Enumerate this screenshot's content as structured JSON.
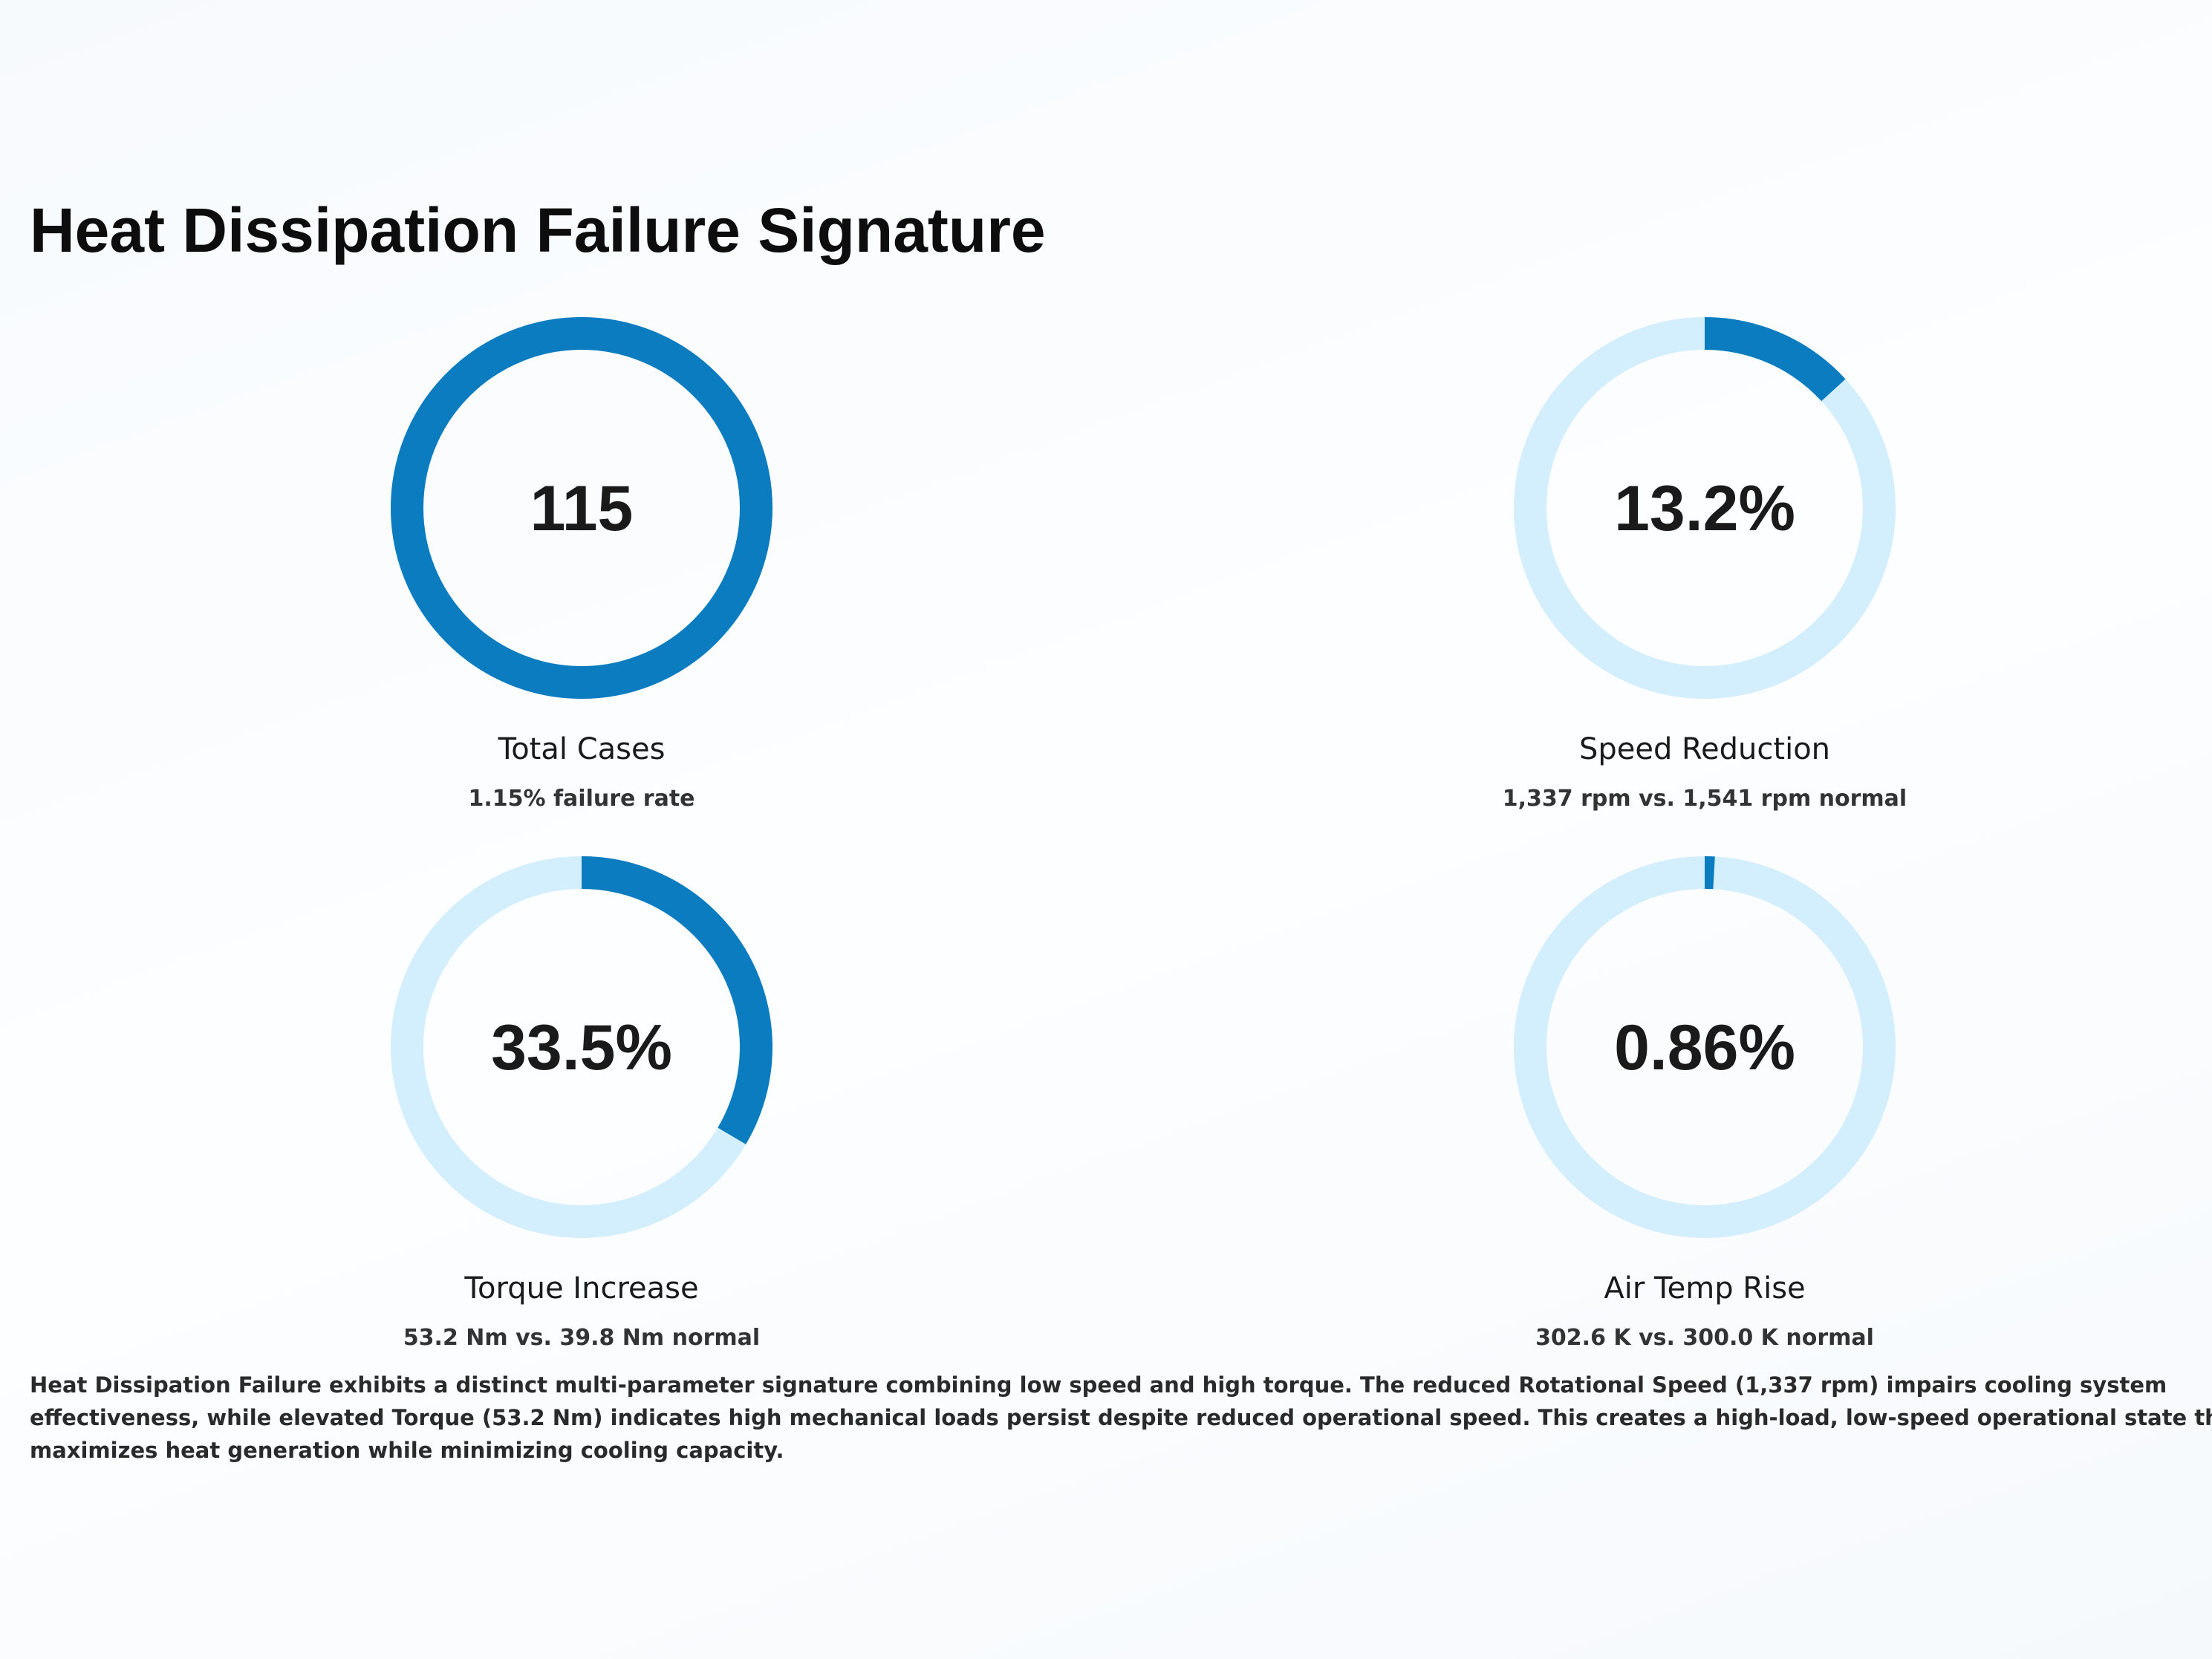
{
  "title": "Heat Dissipation Failure Signature",
  "gauges": [
    {
      "value_label": "115",
      "percent": 100,
      "label": "Total Cases",
      "sublabel": "1.15% failure rate"
    },
    {
      "value_label": "13.2%",
      "percent": 13.2,
      "label": "Speed Reduction",
      "sublabel": "1,337 rpm vs. 1,541 rpm normal"
    },
    {
      "value_label": "33.5%",
      "percent": 33.5,
      "label": "Torque Increase",
      "sublabel": "53.2 Nm vs. 39.8 Nm normal"
    },
    {
      "value_label": "0.86%",
      "percent": 0.86,
      "label": "Air Temp Rise",
      "sublabel": "302.6 K vs. 300.0 K normal"
    }
  ],
  "description": "Heat Dissipation Failure exhibits a distinct multi-parameter signature combining low speed and high torque. The reduced Rotational Speed (1,337 rpm) impairs cooling system effectiveness, while elevated Torque (53.2 Nm) indicates high mechanical loads persist despite reduced operational speed. This creates a high-load, low-speed operational state that maximizes heat generation while minimizing cooling capacity."
}
